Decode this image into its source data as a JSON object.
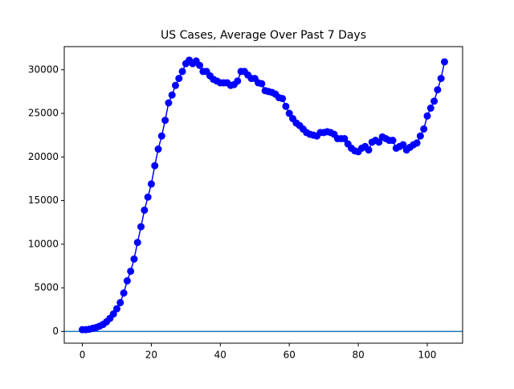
{
  "chart_data": {
    "type": "line",
    "title": "US Cases, Average Over Past 7 Days",
    "x": [
      0,
      1,
      2,
      3,
      4,
      5,
      6,
      7,
      8,
      9,
      10,
      11,
      12,
      13,
      14,
      15,
      16,
      17,
      18,
      19,
      20,
      21,
      22,
      23,
      24,
      25,
      26,
      27,
      28,
      29,
      30,
      31,
      32,
      33,
      34,
      35,
      36,
      37,
      38,
      39,
      40,
      41,
      42,
      43,
      44,
      45,
      46,
      47,
      48,
      49,
      50,
      51,
      52,
      53,
      54,
      55,
      56,
      57,
      58,
      59,
      60,
      61,
      62,
      63,
      64,
      65,
      66,
      67,
      68,
      69,
      70,
      71,
      72,
      73,
      74,
      75,
      76,
      77,
      78,
      79,
      80,
      81,
      82,
      83,
      84,
      85,
      86,
      87,
      88,
      89,
      90,
      91,
      92,
      93,
      94,
      95,
      96,
      97,
      98,
      99,
      100,
      101,
      102,
      103,
      104,
      105
    ],
    "series": [
      {
        "color": "#0000ff",
        "values": [
          200,
          200,
          250,
          350,
          450,
          600,
          800,
          1100,
          1500,
          2000,
          2600,
          3300,
          4400,
          5800,
          6900,
          8300,
          10200,
          12000,
          13900,
          15400,
          16900,
          19000,
          20900,
          22400,
          24200,
          26200,
          27100,
          28200,
          29000,
          29800,
          30700,
          31100,
          30700,
          31000,
          30500,
          29800,
          29800,
          29300,
          28900,
          28700,
          28500,
          28500,
          28500,
          28200,
          28300,
          28700,
          29800,
          29800,
          29400,
          29000,
          29000,
          28500,
          28400,
          27600,
          27500,
          27400,
          27200,
          26800,
          26700,
          25800,
          25000,
          24400,
          23900,
          23600,
          23200,
          22800,
          22600,
          22500,
          22400,
          22800,
          22800,
          22900,
          22800,
          22600,
          22100,
          22100,
          22100,
          21500,
          21000,
          20700,
          20600,
          21000,
          21200,
          20800,
          21700,
          21900,
          21700,
          22300,
          22100,
          21900,
          21900,
          21000,
          21200,
          21400,
          20800,
          21100,
          21400,
          21600,
          22400,
          23200,
          24700,
          25600,
          26400,
          27700,
          29000,
          30900
        ]
      }
    ],
    "reference_line": {
      "value": 0,
      "color": "#1f77b4"
    },
    "xlim": [
      -5.25,
      110.25
    ],
    "xticks": [
      0,
      20,
      40,
      60,
      80,
      100
    ],
    "ylim": [
      -1350,
      32650
    ],
    "yticks": [
      0,
      5000,
      10000,
      15000,
      20000,
      25000,
      30000
    ]
  }
}
